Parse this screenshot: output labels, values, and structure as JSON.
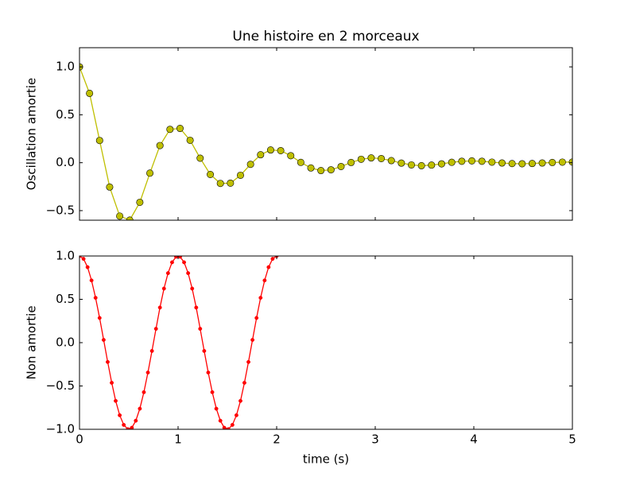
{
  "chart_data": [
    {
      "type": "line",
      "title": "Une histoire en 2 morceaux",
      "ylabel": "Oscillation amortie",
      "x": [
        0,
        0.102,
        0.204,
        0.306,
        0.408,
        0.51,
        0.612,
        0.714,
        0.816,
        0.918,
        1.02,
        1.122,
        1.224,
        1.327,
        1.429,
        1.531,
        1.633,
        1.735,
        1.837,
        1.939,
        2.041,
        2.143,
        2.245,
        2.347,
        2.449,
        2.551,
        2.653,
        2.755,
        2.857,
        2.959,
        3.061,
        3.163,
        3.265,
        3.367,
        3.469,
        3.571,
        3.673,
        3.776,
        3.878,
        3.98,
        4.082,
        4.184,
        4.286,
        4.388,
        4.49,
        4.592,
        4.694,
        4.796,
        4.898,
        5
      ],
      "values": [
        1,
        0.724,
        0.232,
        -0.254,
        -0.557,
        -0.599,
        -0.413,
        -0.109,
        0.179,
        0.348,
        0.358,
        0.234,
        0.047,
        -0.123,
        -0.216,
        -0.213,
        -0.131,
        -0.017,
        0.083,
        0.133,
        0.126,
        0.073,
        0.003,
        -0.055,
        -0.082,
        -0.074,
        -0.04,
        0.002,
        0.036,
        0.05,
        0.043,
        0.022,
        -0.004,
        -0.023,
        -0.031,
        -0.025,
        -0.012,
        0.004,
        0.015,
        0.019,
        0.015,
        0.006,
        -0.003,
        -0.009,
        -0.011,
        -0.008,
        -0.003,
        0.002,
        0.006,
        0.007
      ],
      "color": "#bfbf00",
      "marker": "circle",
      "xlim": [
        0,
        5
      ],
      "xticks": [
        0,
        1,
        2,
        3,
        4,
        5
      ],
      "xticklabels": false,
      "ylim": [
        -0.6,
        1.2
      ],
      "yticks": [
        {
          "value": -0.5,
          "label": "−0.5"
        },
        {
          "value": 0,
          "label": "0.0"
        },
        {
          "value": 0.5,
          "label": "0.5"
        },
        {
          "value": 1,
          "label": "1.0"
        }
      ]
    },
    {
      "type": "line",
      "ylabel": "Non amortie",
      "xlabel": "time (s)",
      "x": [
        0,
        0.041,
        0.082,
        0.122,
        0.163,
        0.204,
        0.245,
        0.286,
        0.327,
        0.367,
        0.408,
        0.449,
        0.49,
        0.531,
        0.571,
        0.612,
        0.653,
        0.694,
        0.735,
        0.776,
        0.816,
        0.857,
        0.898,
        0.939,
        0.98,
        1.02,
        1.061,
        1.102,
        1.143,
        1.184,
        1.224,
        1.265,
        1.306,
        1.347,
        1.388,
        1.429,
        1.469,
        1.51,
        1.551,
        1.592,
        1.633,
        1.673,
        1.714,
        1.755,
        1.796,
        1.837,
        1.878,
        1.918,
        1.959,
        2
      ],
      "values": [
        1,
        0.967,
        0.871,
        0.718,
        0.518,
        0.285,
        0.032,
        -0.223,
        -0.463,
        -0.672,
        -0.838,
        -0.949,
        -0.998,
        -0.982,
        -0.901,
        -0.762,
        -0.572,
        -0.345,
        -0.096,
        0.16,
        0.405,
        0.624,
        0.802,
        0.927,
        0.992,
        0.992,
        0.927,
        0.802,
        0.624,
        0.405,
        0.16,
        -0.096,
        -0.345,
        -0.572,
        -0.762,
        -0.901,
        -0.982,
        -0.998,
        -0.949,
        -0.838,
        -0.672,
        -0.463,
        -0.223,
        0.032,
        0.285,
        0.518,
        0.718,
        0.871,
        0.967,
        1
      ],
      "color": "#ff0000",
      "marker": "dot",
      "xlim": [
        0,
        5
      ],
      "xticks": [
        0,
        1,
        2,
        3,
        4,
        5
      ],
      "xticklabels": true,
      "ylim": [
        -1,
        1
      ],
      "yticks": [
        {
          "value": -1,
          "label": "−1.0"
        },
        {
          "value": -0.5,
          "label": "−0.5"
        },
        {
          "value": 0,
          "label": "0.0"
        },
        {
          "value": 0.5,
          "label": "0.5"
        },
        {
          "value": 1,
          "label": "1.0"
        }
      ]
    }
  ]
}
